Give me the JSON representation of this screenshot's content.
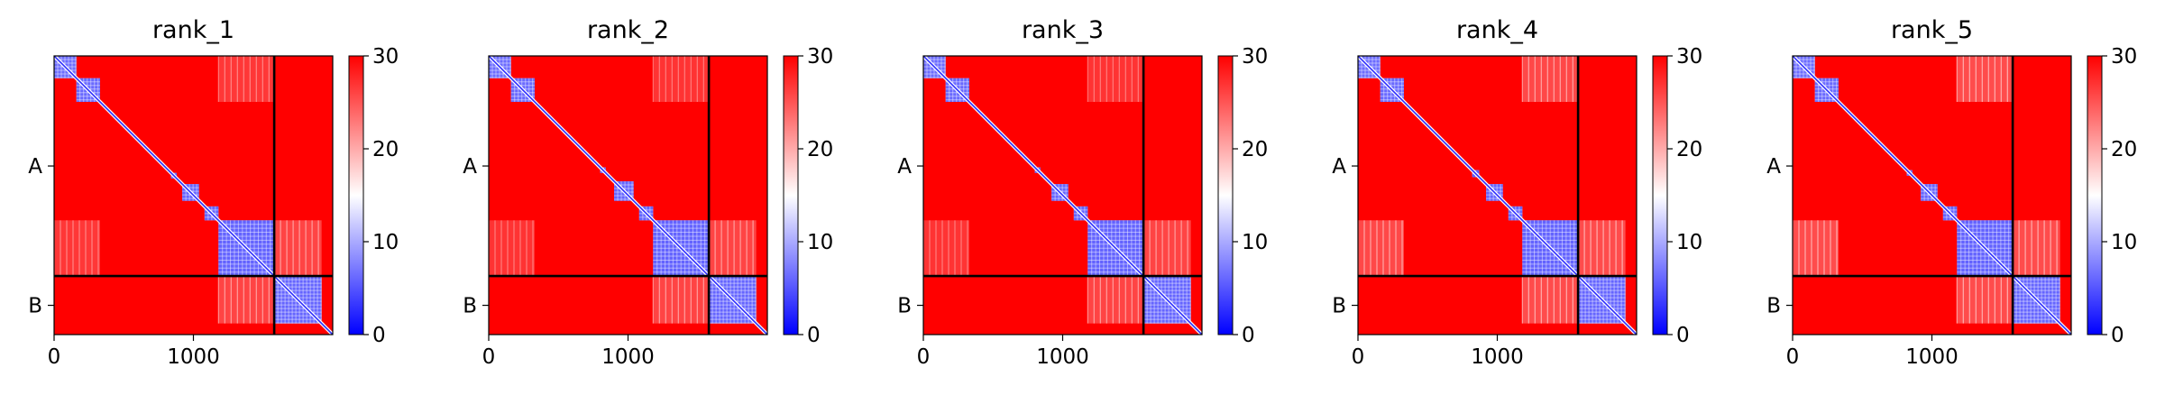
{
  "chart_data": [
    {
      "type": "heatmap",
      "title": "rank_1",
      "xlim": [
        0,
        2000
      ],
      "xticks": [
        "0",
        "1000"
      ],
      "yticks": [
        "A",
        "B"
      ],
      "chain_lengths": [
        1580,
        420
      ],
      "colorbar": {
        "min": 0,
        "max": 30,
        "ticks": [
          "0",
          "10",
          "20",
          "30"
        ],
        "colors": [
          "#0000ff",
          "#ffffff",
          "#ff0000"
        ]
      },
      "low_blocks": [
        [
          0,
          160,
          0.3
        ],
        [
          160,
          330,
          0.35
        ],
        [
          840,
          880,
          0.5
        ],
        [
          920,
          1040,
          0.4
        ],
        [
          1080,
          1180,
          0.4
        ],
        [
          1180,
          1580,
          0.45
        ],
        [
          1580,
          1920,
          0.4
        ]
      ],
      "off_patches": [
        [
          0,
          330,
          1180,
          1580,
          0.65
        ],
        [
          1180,
          1580,
          0,
          330,
          0.65
        ],
        [
          1580,
          1920,
          1180,
          1580,
          0.8
        ],
        [
          1180,
          1580,
          1580,
          1920,
          0.8
        ]
      ]
    },
    {
      "type": "heatmap",
      "title": "rank_2",
      "xlim": [
        0,
        2000
      ],
      "xticks": [
        "0",
        "1000"
      ],
      "yticks": [
        "A",
        "B"
      ],
      "chain_lengths": [
        1580,
        420
      ],
      "colorbar": {
        "min": 0,
        "max": 30,
        "ticks": [
          "0",
          "10",
          "20",
          "30"
        ],
        "colors": [
          "#0000ff",
          "#ffffff",
          "#ff0000"
        ]
      },
      "low_blocks": [
        [
          0,
          160,
          0.3
        ],
        [
          160,
          330,
          0.35
        ],
        [
          800,
          840,
          0.5
        ],
        [
          900,
          1040,
          0.4
        ],
        [
          1080,
          1180,
          0.4
        ],
        [
          1180,
          1580,
          0.45
        ],
        [
          1580,
          1920,
          0.4
        ]
      ],
      "off_patches": [
        [
          0,
          330,
          1180,
          1580,
          0.6
        ],
        [
          1180,
          1580,
          0,
          330,
          0.6
        ],
        [
          1580,
          1920,
          1180,
          1580,
          0.8
        ],
        [
          1180,
          1580,
          1580,
          1920,
          0.8
        ]
      ]
    },
    {
      "type": "heatmap",
      "title": "rank_3",
      "xlim": [
        0,
        2000
      ],
      "xticks": [
        "0",
        "1000"
      ],
      "yticks": [
        "A",
        "B"
      ],
      "chain_lengths": [
        1580,
        420
      ],
      "colorbar": {
        "min": 0,
        "max": 30,
        "ticks": [
          "0",
          "10",
          "20",
          "30"
        ],
        "colors": [
          "#0000ff",
          "#ffffff",
          "#ff0000"
        ]
      },
      "low_blocks": [
        [
          0,
          160,
          0.3
        ],
        [
          160,
          330,
          0.35
        ],
        [
          800,
          840,
          0.5
        ],
        [
          920,
          1040,
          0.4
        ],
        [
          1080,
          1180,
          0.4
        ],
        [
          1180,
          1580,
          0.45
        ],
        [
          1580,
          1920,
          0.4
        ]
      ],
      "off_patches": [
        [
          0,
          330,
          1180,
          1580,
          0.6
        ],
        [
          1180,
          1580,
          0,
          330,
          0.6
        ],
        [
          1580,
          1920,
          1180,
          1580,
          0.8
        ],
        [
          1180,
          1580,
          1580,
          1920,
          0.8
        ]
      ]
    },
    {
      "type": "heatmap",
      "title": "rank_4",
      "xlim": [
        0,
        2000
      ],
      "xticks": [
        "0",
        "1000"
      ],
      "yticks": [
        "A",
        "B"
      ],
      "chain_lengths": [
        1580,
        420
      ],
      "colorbar": {
        "min": 0,
        "max": 30,
        "ticks": [
          "0",
          "10",
          "20",
          "30"
        ],
        "colors": [
          "#0000ff",
          "#ffffff",
          "#ff0000"
        ]
      },
      "low_blocks": [
        [
          0,
          160,
          0.3
        ],
        [
          160,
          330,
          0.35
        ],
        [
          820,
          870,
          0.5
        ],
        [
          920,
          1040,
          0.4
        ],
        [
          1080,
          1180,
          0.4
        ],
        [
          1180,
          1580,
          0.45
        ],
        [
          1580,
          1920,
          0.4
        ]
      ],
      "off_patches": [
        [
          0,
          330,
          1180,
          1580,
          0.85
        ],
        [
          1180,
          1580,
          0,
          330,
          0.85
        ],
        [
          1580,
          1920,
          1180,
          1580,
          0.9
        ],
        [
          1180,
          1580,
          1580,
          1920,
          0.9
        ]
      ]
    },
    {
      "type": "heatmap",
      "title": "rank_5",
      "xlim": [
        0,
        2000
      ],
      "xticks": [
        "0",
        "1000"
      ],
      "yticks": [
        "A",
        "B"
      ],
      "chain_lengths": [
        1580,
        420
      ],
      "colorbar": {
        "min": 0,
        "max": 30,
        "ticks": [
          "0",
          "10",
          "20",
          "30"
        ],
        "colors": [
          "#0000ff",
          "#ffffff",
          "#ff0000"
        ]
      },
      "low_blocks": [
        [
          0,
          160,
          0.3
        ],
        [
          160,
          330,
          0.35
        ],
        [
          820,
          860,
          0.5
        ],
        [
          920,
          1040,
          0.4
        ],
        [
          1080,
          1180,
          0.4
        ],
        [
          1180,
          1580,
          0.45
        ],
        [
          1580,
          1920,
          0.4
        ]
      ],
      "off_patches": [
        [
          0,
          330,
          1180,
          1580,
          0.9
        ],
        [
          1180,
          1580,
          0,
          330,
          0.9
        ],
        [
          1580,
          1920,
          1180,
          1580,
          0.9
        ],
        [
          1180,
          1580,
          1580,
          1920,
          0.9
        ]
      ]
    }
  ]
}
